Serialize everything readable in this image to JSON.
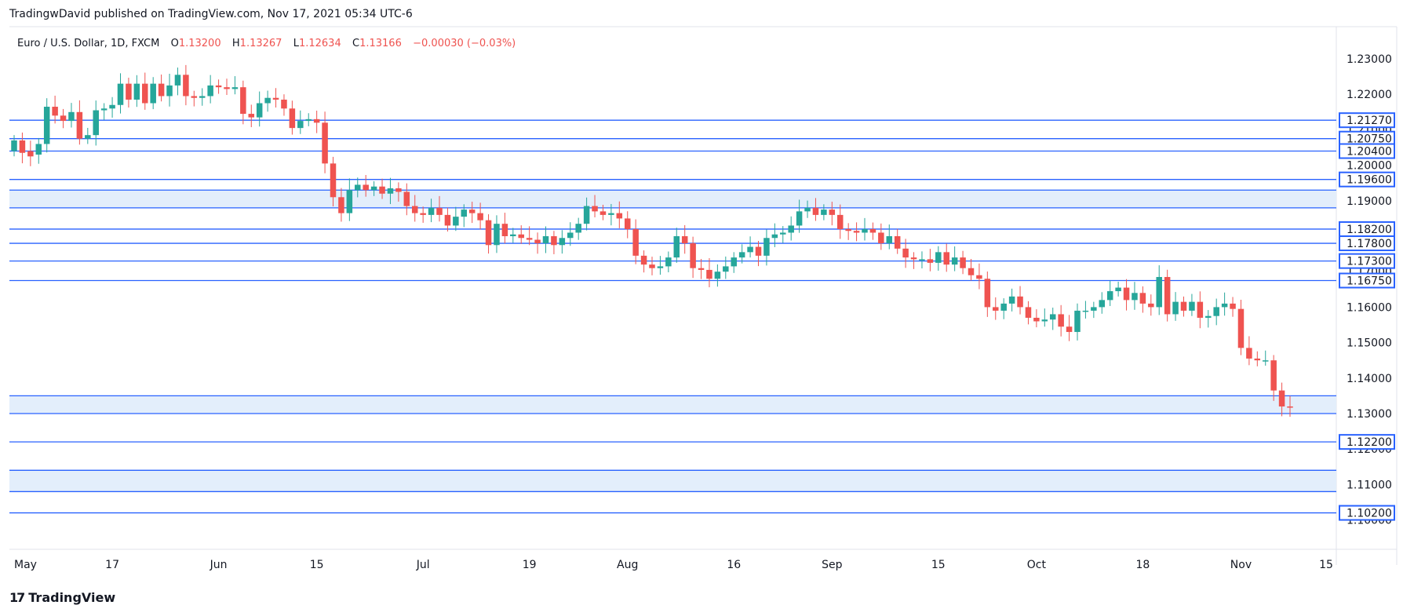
{
  "header": {
    "published": "TradingwDavid published on TradingView.com, Nov 17, 2021 05:34 UTC-6"
  },
  "legend": {
    "symbol": "Euro / U.S. Dollar, 1D, FXCM",
    "o_label": "O",
    "o_value": "1.13200",
    "h_label": "H",
    "h_value": "1.13267",
    "l_label": "L",
    "l_value": "1.12634",
    "c_label": "C",
    "c_value": "1.13166",
    "change": "−0.00030 (−0.03%)"
  },
  "footer": {
    "brand": "TradingView"
  },
  "colors": {
    "up": "#26a69a",
    "down": "#ef5350",
    "line": "#2962ff",
    "zone": "#e3eefb",
    "label_bg": "#2962ff"
  },
  "chart_data": {
    "type": "candlestick",
    "ylim": [
      1.0945,
      1.2375
    ],
    "y_ticks": [
      1.23,
      1.22,
      1.21,
      1.2,
      1.19,
      1.18,
      1.17,
      1.16,
      1.15,
      1.14,
      1.13,
      1.12,
      1.11,
      1.1
    ],
    "y_tick_labels": [
      "1.23000",
      "1.22000",
      "1.21000",
      "1.20000",
      "1.19000",
      "1.18000",
      "1.17000",
      "1.16000",
      "1.15000",
      "1.14000",
      "1.13000",
      "1.12000",
      "1.11000",
      "1.10000"
    ],
    "x_labels": [
      "May",
      "17",
      "Jun",
      "15",
      "Jul",
      "19",
      "Aug",
      "16",
      "Sep",
      "15",
      "Oct",
      "18",
      "Nov",
      "15"
    ],
    "x_label_index": [
      0,
      12,
      25,
      37,
      50,
      63,
      75,
      88,
      100,
      113,
      125,
      138,
      150,
      163
    ],
    "horizontal_lines": [
      1.2127,
      1.2075,
      1.204,
      1.196,
      1.193,
      1.188,
      1.182,
      1.178,
      1.173,
      1.1675,
      1.135,
      1.13,
      1.122,
      1.114,
      1.108,
      1.102
    ],
    "price_labels": [
      "1.21270",
      "1.20750",
      "1.20400",
      "1.19600",
      "1.18200",
      "1.17800",
      "1.17300",
      "1.16750",
      "1.12200",
      "1.10200"
    ],
    "price_label_values": [
      1.2127,
      1.2075,
      1.204,
      1.196,
      1.182,
      1.178,
      1.173,
      1.1675,
      1.122,
      1.102
    ],
    "zones": [
      [
        1.188,
        1.193
      ],
      [
        1.13,
        1.135
      ],
      [
        1.108,
        1.114
      ]
    ],
    "closes": [
      1.207,
      1.2035,
      1.2025,
      1.206,
      1.2165,
      1.214,
      1.2125,
      1.215,
      1.2075,
      1.2085,
      1.2155,
      1.216,
      1.217,
      1.223,
      1.2185,
      1.223,
      1.2175,
      1.223,
      1.2195,
      1.2225,
      1.2255,
      1.2195,
      1.219,
      1.2195,
      1.2225,
      1.222,
      1.2215,
      1.222,
      1.2145,
      1.2135,
      1.2175,
      1.219,
      1.2185,
      1.216,
      1.2105,
      1.2125,
      1.213,
      1.212,
      1.2005,
      1.191,
      1.1865,
      1.193,
      1.1945,
      1.193,
      1.194,
      1.192,
      1.1935,
      1.1925,
      1.1885,
      1.1865,
      1.186,
      1.188,
      1.186,
      1.183,
      1.1855,
      1.1875,
      1.1865,
      1.1845,
      1.1775,
      1.1835,
      1.18,
      1.1805,
      1.1795,
      1.179,
      1.178,
      1.18,
      1.1775,
      1.1795,
      1.181,
      1.1835,
      1.1885,
      1.187,
      1.186,
      1.1865,
      1.185,
      1.182,
      1.1745,
      1.172,
      1.171,
      1.1715,
      1.174,
      1.18,
      1.178,
      1.171,
      1.1705,
      1.168,
      1.17,
      1.1715,
      1.174,
      1.1755,
      1.177,
      1.1745,
      1.1795,
      1.1805,
      1.181,
      1.183,
      1.187,
      1.188,
      1.186,
      1.1875,
      1.186,
      1.182,
      1.1815,
      1.181,
      1.182,
      1.181,
      1.178,
      1.18,
      1.1765,
      1.174,
      1.1735,
      1.1735,
      1.1725,
      1.1755,
      1.172,
      1.174,
      1.171,
      1.169,
      1.168,
      1.16,
      1.159,
      1.161,
      1.163,
      1.16,
      1.157,
      1.156,
      1.1565,
      1.158,
      1.1545,
      1.153,
      1.159,
      1.159,
      1.16,
      1.162,
      1.1645,
      1.1655,
      1.162,
      1.164,
      1.161,
      1.16,
      1.1685,
      1.158,
      1.1615,
      1.159,
      1.1615,
      1.157,
      1.1575,
      1.16,
      1.161,
      1.1595,
      1.1485,
      1.1455,
      1.145,
      1.145,
      1.1365,
      1.132,
      1.13166
    ],
    "opens": [
      1.204,
      1.207,
      1.204,
      1.203,
      1.206,
      1.2165,
      1.214,
      1.2125,
      1.215,
      1.2075,
      1.2085,
      1.2155,
      1.216,
      1.217,
      1.223,
      1.2185,
      1.223,
      1.2175,
      1.223,
      1.2195,
      1.2225,
      1.2255,
      1.2195,
      1.219,
      1.2195,
      1.2225,
      1.222,
      1.2215,
      1.222,
      1.2145,
      1.2135,
      1.2175,
      1.219,
      1.2185,
      1.216,
      1.2105,
      1.2125,
      1.213,
      1.212,
      1.2005,
      1.191,
      1.1865,
      1.193,
      1.1945,
      1.193,
      1.194,
      1.192,
      1.1935,
      1.1925,
      1.1885,
      1.1865,
      1.186,
      1.188,
      1.186,
      1.183,
      1.1855,
      1.1875,
      1.1865,
      1.1845,
      1.1775,
      1.1835,
      1.18,
      1.1805,
      1.1795,
      1.179,
      1.178,
      1.18,
      1.1775,
      1.1795,
      1.181,
      1.1835,
      1.1885,
      1.187,
      1.186,
      1.1865,
      1.185,
      1.182,
      1.1745,
      1.172,
      1.171,
      1.1715,
      1.174,
      1.18,
      1.178,
      1.171,
      1.1705,
      1.168,
      1.17,
      1.1715,
      1.174,
      1.1755,
      1.177,
      1.1745,
      1.1795,
      1.1805,
      1.181,
      1.183,
      1.187,
      1.188,
      1.186,
      1.1875,
      1.186,
      1.182,
      1.1815,
      1.181,
      1.182,
      1.181,
      1.178,
      1.18,
      1.1765,
      1.174,
      1.1735,
      1.1735,
      1.1725,
      1.1755,
      1.172,
      1.174,
      1.171,
      1.169,
      1.168,
      1.16,
      1.159,
      1.161,
      1.163,
      1.16,
      1.157,
      1.156,
      1.1565,
      1.158,
      1.1545,
      1.153,
      1.159,
      1.159,
      1.16,
      1.162,
      1.1645,
      1.1655,
      1.162,
      1.164,
      1.161,
      1.16,
      1.1685,
      1.158,
      1.1615,
      1.159,
      1.1615,
      1.157,
      1.1575,
      1.16,
      1.161,
      1.1595,
      1.1485,
      1.1455,
      1.145,
      1.145,
      1.1365,
      1.132
    ]
  }
}
